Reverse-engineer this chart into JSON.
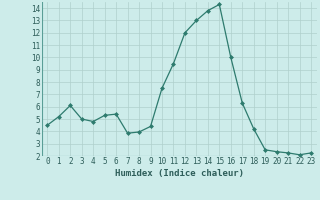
{
  "x": [
    0,
    1,
    2,
    3,
    4,
    5,
    6,
    7,
    8,
    9,
    10,
    11,
    12,
    13,
    14,
    15,
    16,
    17,
    18,
    19,
    20,
    21,
    22,
    23
  ],
  "y": [
    4.5,
    5.2,
    6.1,
    5.0,
    4.8,
    5.3,
    5.4,
    3.85,
    3.95,
    4.4,
    7.5,
    9.5,
    12.0,
    13.0,
    13.8,
    14.3,
    10.0,
    6.3,
    4.2,
    2.5,
    2.35,
    2.25,
    2.1,
    2.25
  ],
  "line_color": "#2e7b6e",
  "marker": "D",
  "marker_size": 2.0,
  "bg_color": "#cdecea",
  "grid_color": "#b0d0cc",
  "xlabel": "Humidex (Indice chaleur)",
  "xlim": [
    -0.5,
    23.5
  ],
  "ylim": [
    2.0,
    14.5
  ],
  "yticks": [
    2,
    3,
    4,
    5,
    6,
    7,
    8,
    9,
    10,
    11,
    12,
    13,
    14
  ],
  "xticks": [
    0,
    1,
    2,
    3,
    4,
    5,
    6,
    7,
    8,
    9,
    10,
    11,
    12,
    13,
    14,
    15,
    16,
    17,
    18,
    19,
    20,
    21,
    22,
    23
  ],
  "tick_fontsize": 5.5,
  "xlabel_fontsize": 6.5
}
